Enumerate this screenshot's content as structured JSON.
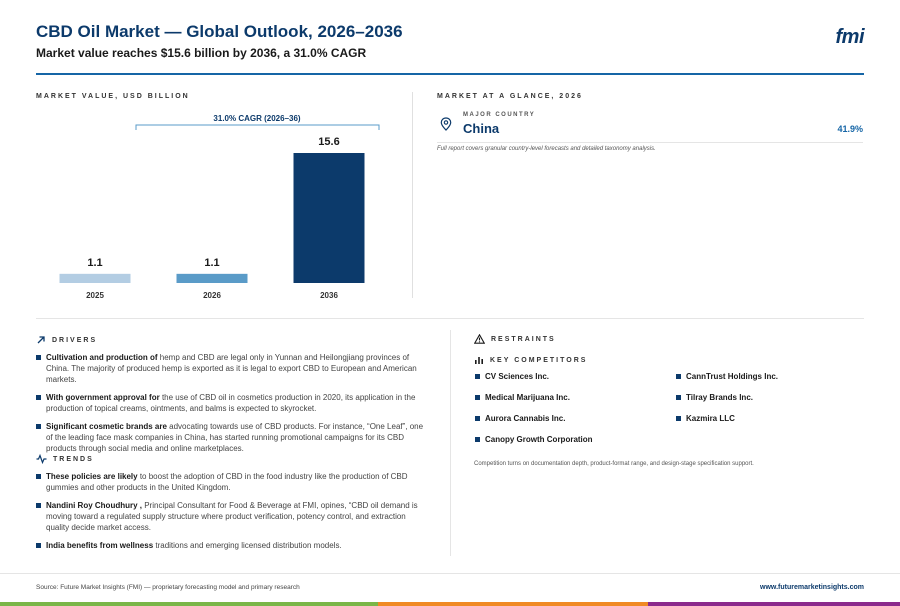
{
  "header": {
    "title": "CBD Oil Market — Global Outlook, 2026–2036",
    "subtitle": "Market value reaches $15.6 billion by 2036, a 31.0% CAGR",
    "logo": "fmi"
  },
  "chart_section": {
    "label": "MARKET VALUE, USD BILLION"
  },
  "chart_data": {
    "type": "bar",
    "categories": [
      "2025",
      "2026",
      "2036"
    ],
    "values": [
      1.1,
      1.1,
      15.6
    ],
    "value_labels": [
      "1.1",
      "1.1",
      "15.6"
    ],
    "colors": [
      "#b3cde3",
      "#5a9bc8",
      "#0c3a6b"
    ],
    "ylim": [
      0,
      15.6
    ],
    "annotation": "31.0% CAGR (2026–36)",
    "title": "",
    "xlabel": "",
    "ylabel": ""
  },
  "glance": {
    "label": "MARKET AT A GLANCE, 2026",
    "country_label": "MAJOR COUNTRY",
    "country": "China",
    "share": "41.9%",
    "note": "Full report covers granular country-level forecasts and detailed taxonomy analysis."
  },
  "drivers": {
    "label": "DRIVERS",
    "items": [
      {
        "bold": "Cultivation and production of",
        "text": " hemp and CBD are legal only in Yunnan and Heilongjiang provinces of China. The majority of produced hemp is exported as it is legal to export CBD to European and American markets."
      },
      {
        "bold": "With government approval for",
        "text": " the use of CBD oil in cosmetics production in 2020, its application in the production of topical creams, ointments, and balms is expected to skyrocket."
      },
      {
        "bold": "Significant cosmetic brands are",
        "text": " advocating towards use of CBD products. For instance, “One Leaf”, one of the leading face mask companies in China, has started running promotional campaigns for its CBD products through social media and online marketplaces."
      }
    ]
  },
  "trends": {
    "label": "TRENDS",
    "items": [
      {
        "bold": "These policies are likely",
        "text": " to boost the adoption of CBD in the food industry like the production of CBD gummies and other products in the United Kingdom."
      },
      {
        "bold": "Nandini Roy Choudhury ,",
        "text": " Principal Consultant for Food & Beverage at FMI, opines, “CBD oil demand is moving toward a regulated supply structure where product verification, potency control, and extraction quality decide market access."
      },
      {
        "bold": "India benefits from wellness",
        "text": " traditions and emerging licensed distribution models."
      }
    ]
  },
  "restraints": {
    "label": "RESTRAINTS"
  },
  "competitors": {
    "label": "KEY COMPETITORS",
    "items": [
      "CV Sciences Inc.",
      "CannTrust Holdings Inc.",
      "Medical Marijuana Inc.",
      "Tilray Brands Inc.",
      "Aurora Cannabis Inc.",
      "Kazmira LLC",
      "Canopy Growth Corporation"
    ],
    "note": "Competition turns on documentation depth, product-format range, and design-stage specification support."
  },
  "footer": {
    "source": "Source: Future Market Insights (FMI) — proprietary forecasting model and primary research",
    "site": "www.futuremarketinsights.com",
    "bar_colors": [
      "#7ab648",
      "#f08a24",
      "#8b2a8c"
    ]
  }
}
